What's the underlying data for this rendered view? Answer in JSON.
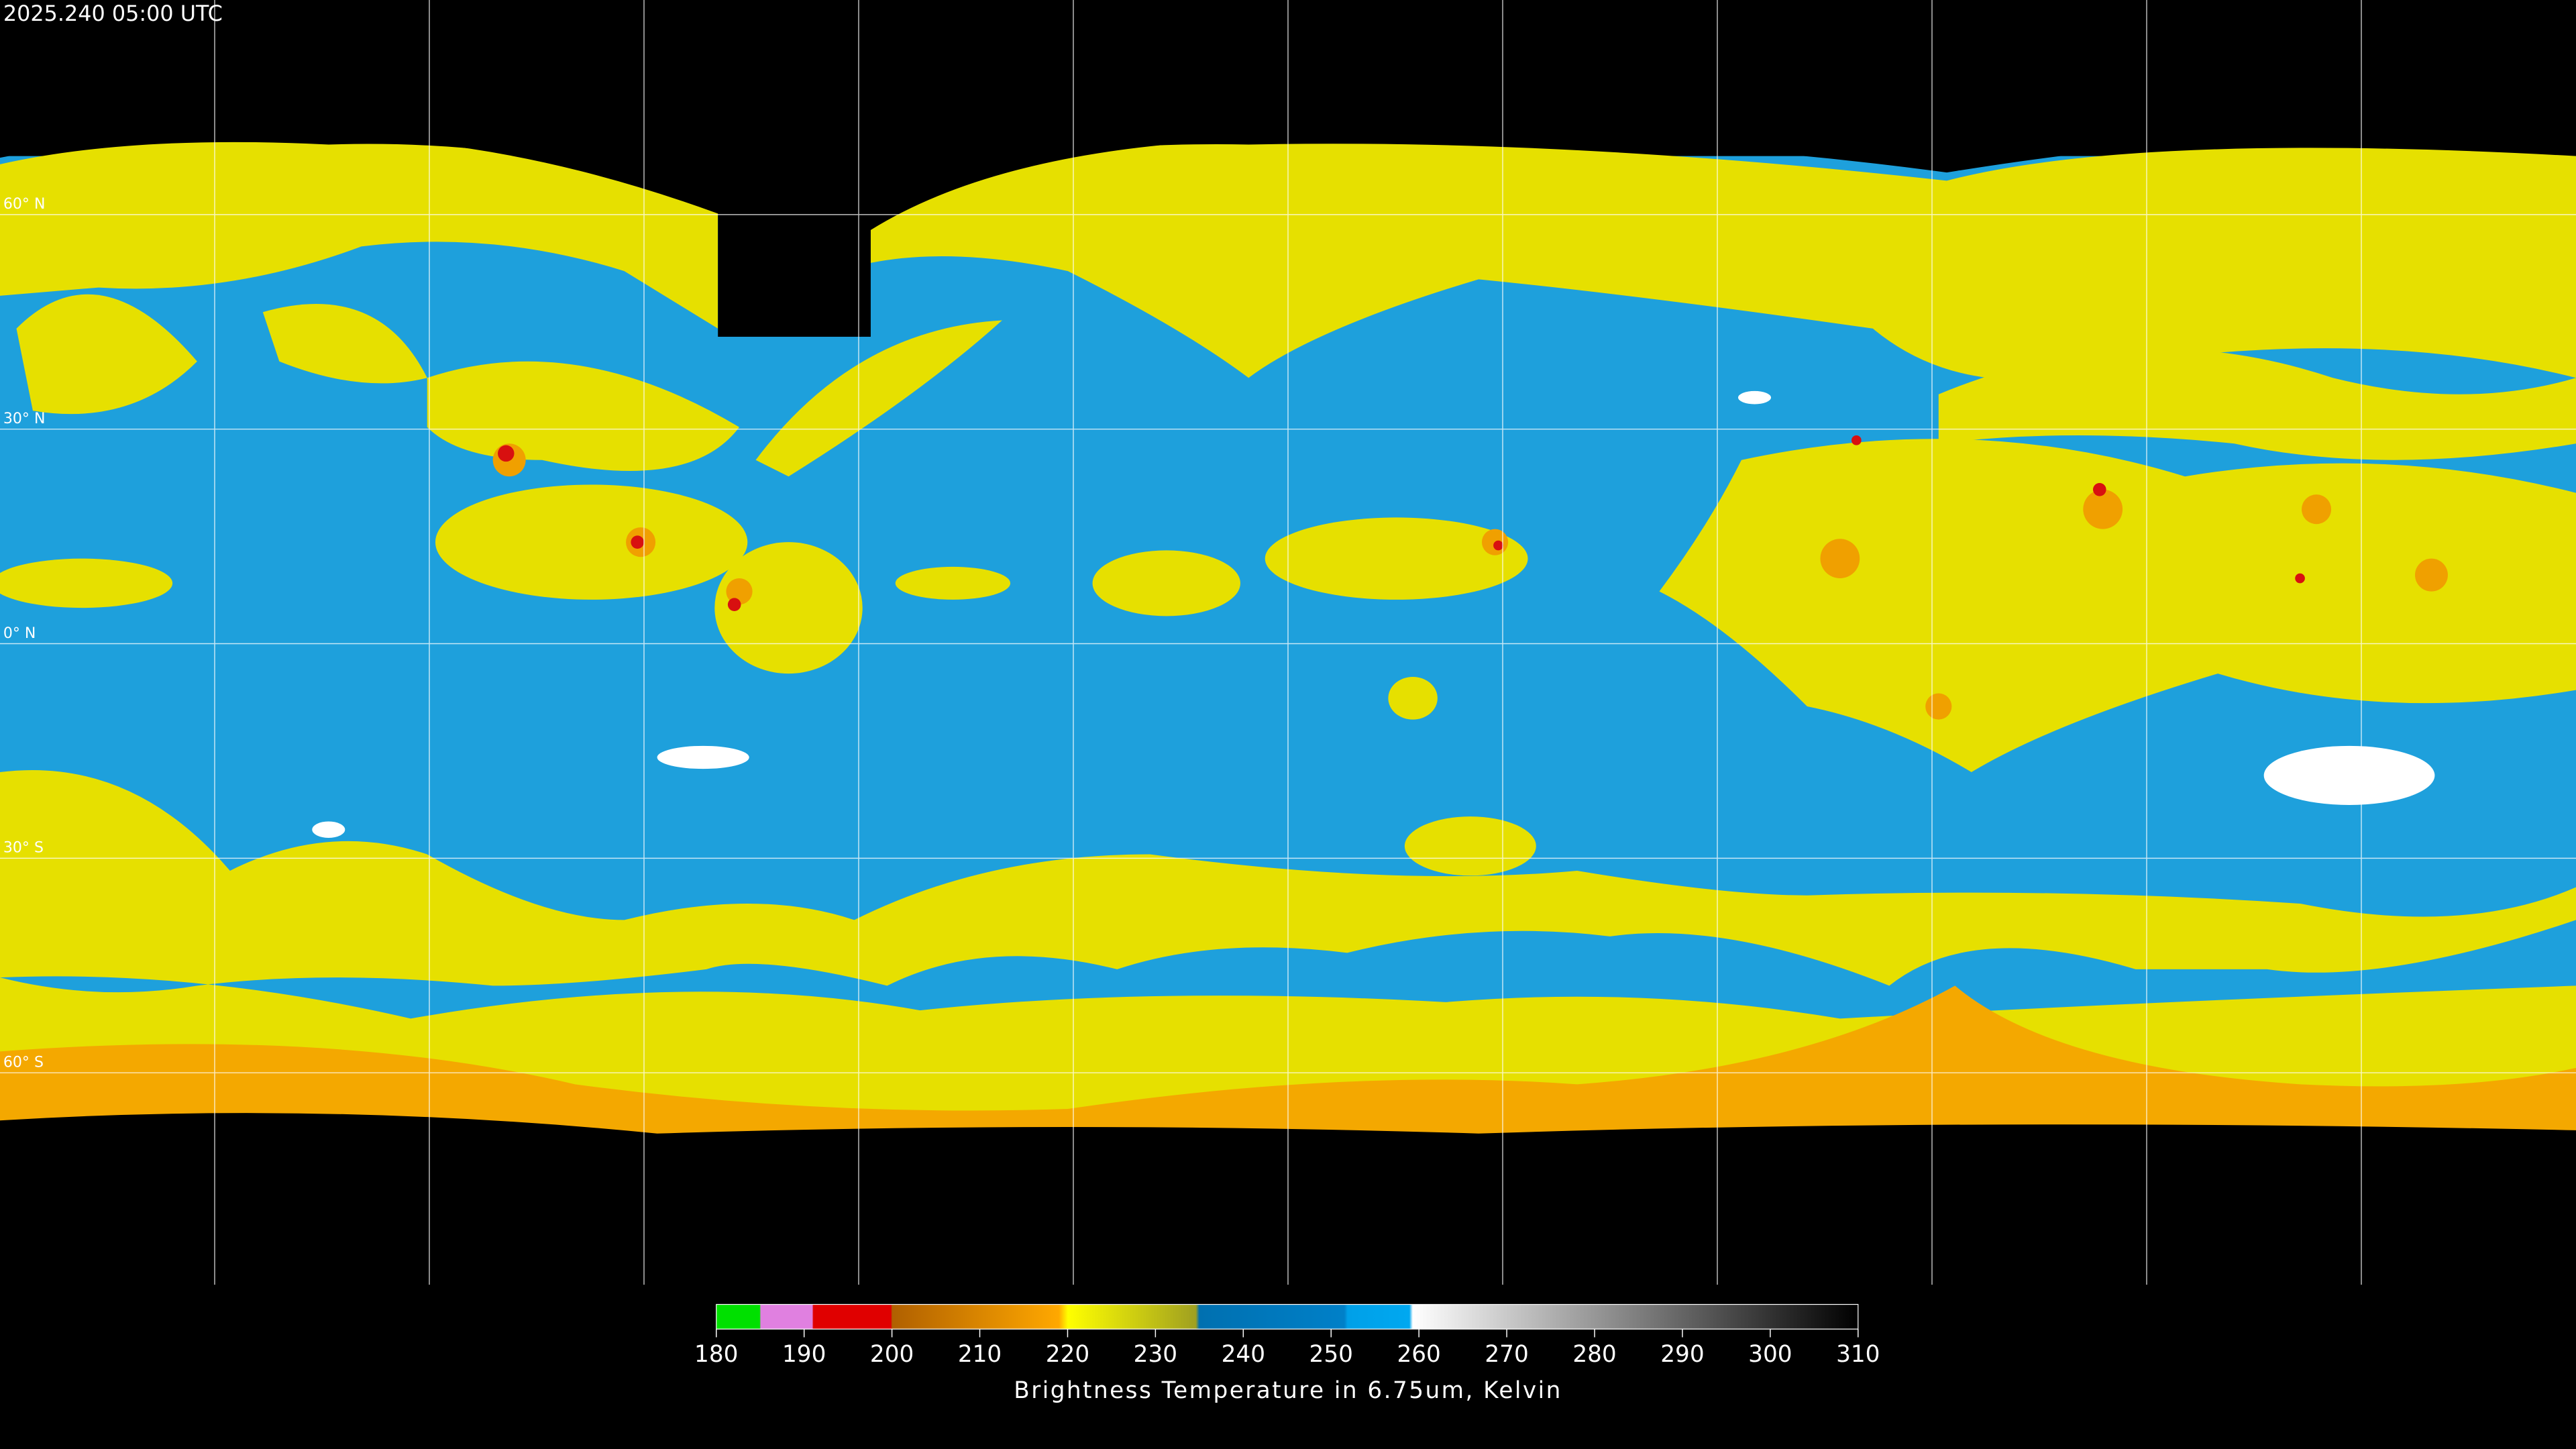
{
  "timestamp": "2025.240 05:00 UTC",
  "latitude_labels": [
    "60° N",
    "30° N",
    "0° N",
    "30° S",
    "60° S"
  ],
  "colorbar": {
    "ticks": [
      180,
      190,
      200,
      210,
      220,
      230,
      240,
      250,
      260,
      270,
      280,
      290,
      300,
      310
    ],
    "title": "Brightness Temperature in 6.75um, Kelvin"
  }
}
